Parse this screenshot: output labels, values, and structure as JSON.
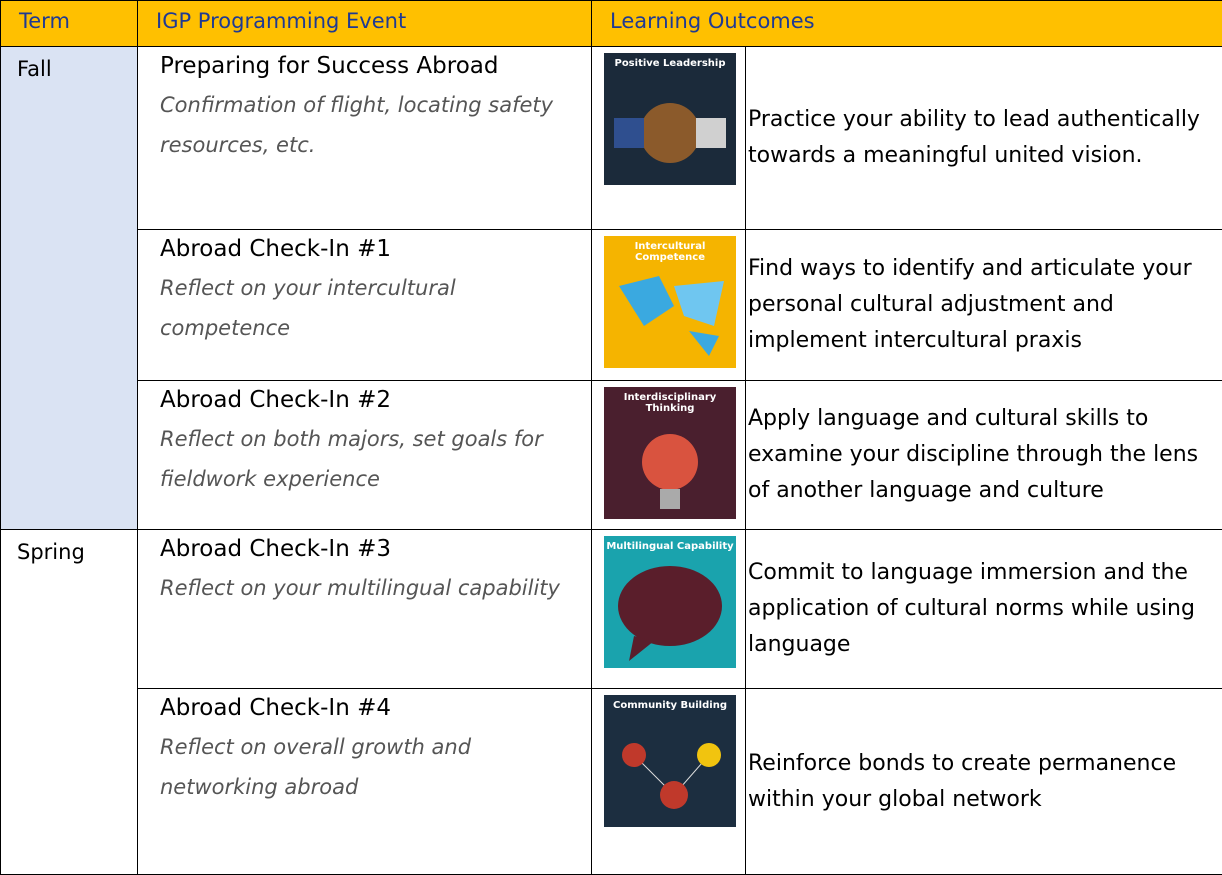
{
  "header": {
    "columns": [
      "Term",
      "IGP Programming Event",
      "Learning Outcomes"
    ]
  },
  "terms": [
    {
      "name": "Fall",
      "events": [
        {
          "title": "Preparing for Success Abroad",
          "description": "Confirmation of flight, locating safety resources, etc.",
          "badge": "Positive Leadership",
          "outcome": "Practice your ability to lead authentically towards a meaningful united vision."
        },
        {
          "title": "Abroad Check-In #1",
          "description": "Reflect on your intercultural competence",
          "badge": "Intercultural Competence",
          "outcome": "Find ways to identify and articulate your personal cultural adjustment and implement intercultural praxis"
        },
        {
          "title": "Abroad Check-In #2",
          "description": "Reflect on both majors, set goals for fieldwork experience",
          "badge": "Interdisciplinary Thinking",
          "outcome": "Apply language and cultural skills to examine your discipline through the lens of another language and culture"
        }
      ]
    },
    {
      "name": "Spring",
      "events": [
        {
          "title": "Abroad Check-In #3",
          "description": "Reflect on your multilingual capability",
          "badge": "Multilingual Capability",
          "outcome": "Commit to language immersion and the application of cultural norms while using language"
        },
        {
          "title": "Abroad Check-In #4",
          "description": "Reflect on overall growth and networking abroad",
          "badge": "Community Building",
          "outcome": "Reinforce bonds to create permanence within your global network"
        }
      ]
    }
  ]
}
